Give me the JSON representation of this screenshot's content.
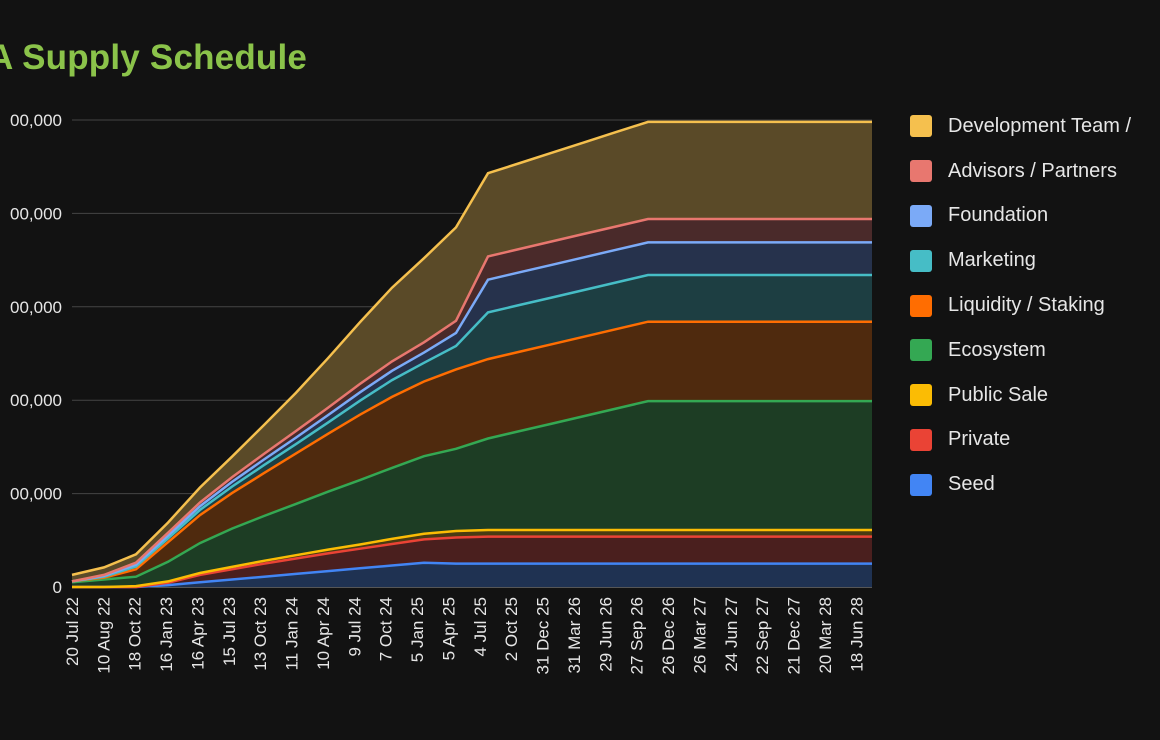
{
  "chart_data": {
    "type": "area",
    "stacked": true,
    "title": "A Supply Schedule",
    "xlabel": "",
    "ylabel": "",
    "ylim": [
      0,
      5000000000
    ],
    "y_ticks": [
      {
        "value": 0,
        "label": "0"
      },
      {
        "value": 1000000000,
        "label": "00,000"
      },
      {
        "value": 2000000000,
        "label": "00,000"
      },
      {
        "value": 3000000000,
        "label": "00,000"
      },
      {
        "value": 4000000000,
        "label": "00,000"
      },
      {
        "value": 5000000000,
        "label": "00,000"
      }
    ],
    "x_ticks": [
      "20 Jul 22",
      "10 Aug 22",
      "18 Oct 22",
      "16 Jan 23",
      "16 Apr 23",
      "15 Jul 23",
      "13 Oct 23",
      "11 Jan 24",
      "10 Apr 24",
      "9 Jul 24",
      "7 Oct 24",
      "5 Jan 25",
      "5 Apr 25",
      "4 Jul 25",
      "2 Oct 25",
      "31 Dec 25",
      "31 Mar 26",
      "29 Jun 26",
      "27 Sep 26",
      "26 Dec 26",
      "26 Mar 27",
      "24 Jun 27",
      "22 Sep 27",
      "21 Dec 27",
      "20 Mar 28",
      "18 Jun 28"
    ],
    "x": [
      0,
      1,
      2,
      3,
      4,
      5,
      6,
      7,
      8,
      9,
      10,
      11,
      12,
      13,
      14,
      15,
      16,
      17,
      18,
      19,
      20,
      21,
      22,
      23,
      24,
      25
    ],
    "grid": true,
    "legend_position": "right",
    "series": [
      {
        "name": "Seed",
        "color": "#4285f4",
        "fill": "#1f3252",
        "values": [
          0,
          0,
          0,
          20,
          50,
          80,
          110,
          140,
          170,
          200,
          230,
          260,
          250,
          250,
          250,
          250,
          250,
          250,
          250,
          250,
          250,
          250,
          250,
          250,
          250,
          250
        ]
      },
      {
        "name": "Private",
        "color": "#ea4335",
        "fill": "#4a1f1e",
        "values": [
          0,
          0,
          0,
          25,
          80,
          110,
          140,
          165,
          190,
          210,
          230,
          250,
          280,
          290,
          290,
          290,
          290,
          290,
          290,
          290,
          290,
          290,
          290,
          290,
          290,
          290
        ]
      },
      {
        "name": "Public Sale",
        "color": "#fbbc04",
        "fill": "#4a3b12",
        "values": [
          0,
          0,
          10,
          15,
          20,
          25,
          30,
          35,
          40,
          45,
          55,
          60,
          70,
          70,
          70,
          70,
          70,
          70,
          70,
          70,
          70,
          70,
          70,
          70,
          70,
          70
        ]
      },
      {
        "name": "Ecosystem",
        "color": "#34a853",
        "fill": "#1d3d24",
        "values": [
          50,
          80,
          100,
          210,
          320,
          410,
          480,
          550,
          620,
          690,
          760,
          830,
          880,
          980,
          1060,
          1140,
          1220,
          1300,
          1380,
          1380,
          1380,
          1380,
          1380,
          1380,
          1380,
          1380
        ]
      },
      {
        "name": "Liquidity / Staking",
        "color": "#ff6d01",
        "fill": "#4f2a0e",
        "values": [
          10,
          20,
          80,
          210,
          300,
          380,
          460,
          540,
          620,
          700,
          760,
          800,
          850,
          850,
          850,
          850,
          850,
          850,
          850,
          850,
          850,
          850,
          850,
          850,
          850,
          850
        ]
      },
      {
        "name": "Marketing",
        "color": "#46bdc6",
        "fill": "#1d3e42",
        "values": [
          0,
          10,
          30,
          40,
          55,
          70,
          85,
          100,
          120,
          150,
          180,
          200,
          250,
          500,
          500,
          500,
          500,
          500,
          500,
          500,
          500,
          500,
          500,
          500,
          500,
          500
        ]
      },
      {
        "name": "Foundation",
        "color": "#7baaf7",
        "fill": "#26324c",
        "values": [
          0,
          10,
          20,
          30,
          40,
          50,
          60,
          70,
          80,
          90,
          100,
          110,
          140,
          350,
          350,
          350,
          350,
          350,
          350,
          350,
          350,
          350,
          350,
          350,
          350,
          350
        ]
      },
      {
        "name": "Advisors / Partners",
        "color": "#e8776f",
        "fill": "#4a2a2a",
        "values": [
          0,
          10,
          20,
          30,
          40,
          50,
          60,
          70,
          80,
          90,
          100,
          110,
          130,
          250,
          250,
          250,
          250,
          250,
          250,
          250,
          250,
          250,
          250,
          250,
          250,
          250
        ]
      },
      {
        "name": "Development Team /",
        "color": "#f5c04e",
        "fill": "#5a4a28",
        "values": [
          70,
          80,
          90,
          110,
          160,
          220,
          310,
          410,
          530,
          660,
          790,
          900,
          1000,
          890,
          920,
          950,
          980,
          1010,
          1040,
          1040,
          1040,
          1040,
          1040,
          1040,
          1040,
          1040
        ]
      }
    ],
    "value_scale_note": "values in millions"
  }
}
